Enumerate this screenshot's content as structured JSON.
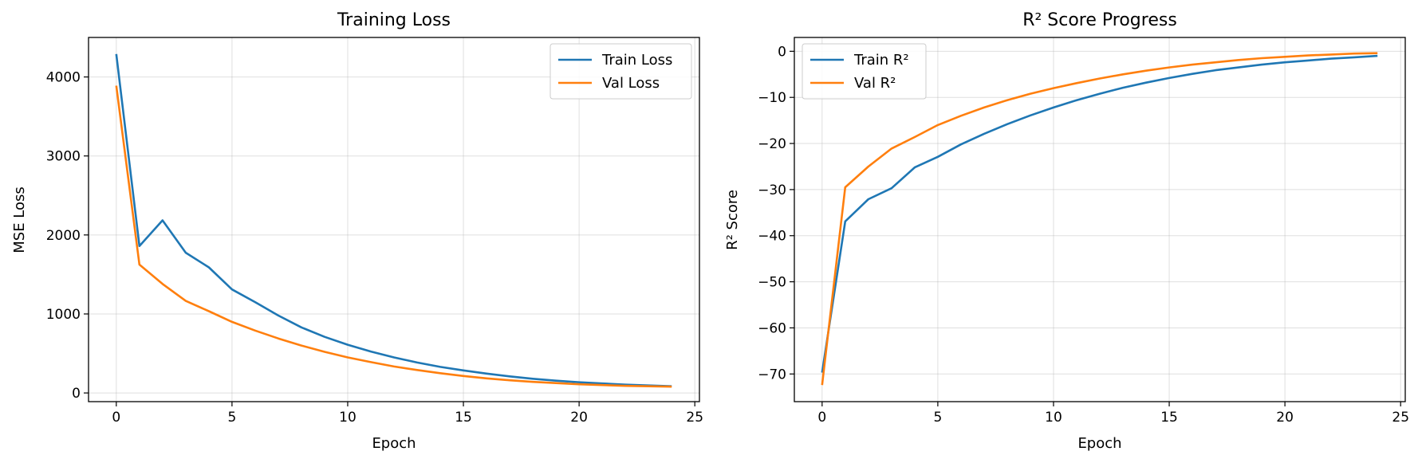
{
  "chart_data": [
    {
      "type": "line",
      "title": "Training Loss",
      "xlabel": "Epoch",
      "ylabel": "MSE Loss",
      "xlim": [
        -1.2,
        25.2
      ],
      "ylim": [
        -110,
        4500
      ],
      "xticks": [
        0,
        5,
        10,
        15,
        20,
        25
      ],
      "yticks": [
        0,
        1000,
        2000,
        3000,
        4000
      ],
      "xtick_labels": [
        "0",
        "5",
        "10",
        "15",
        "20",
        "25"
      ],
      "ytick_labels": [
        "0",
        "1000",
        "2000",
        "3000",
        "4000"
      ],
      "grid": true,
      "legend_position": "upper right",
      "x": [
        0,
        1,
        2,
        3,
        4,
        5,
        6,
        7,
        8,
        9,
        10,
        11,
        12,
        13,
        14,
        15,
        16,
        17,
        18,
        19,
        20,
        21,
        22,
        23,
        24
      ],
      "series": [
        {
          "name": "Train Loss",
          "color": "#1f77b4",
          "values": [
            4290,
            1860,
            2185,
            1775,
            1590,
            1310,
            1150,
            980,
            830,
            710,
            610,
            525,
            450,
            385,
            330,
            285,
            245,
            210,
            180,
            155,
            135,
            120,
            105,
            95,
            85
          ]
        },
        {
          "name": "Val Loss",
          "color": "#ff7f0e",
          "values": [
            3890,
            1625,
            1380,
            1165,
            1035,
            900,
            790,
            690,
            600,
            520,
            450,
            390,
            335,
            290,
            250,
            215,
            185,
            160,
            140,
            125,
            110,
            100,
            90,
            85,
            80
          ]
        }
      ]
    },
    {
      "type": "line",
      "title": "R² Score Progress",
      "xlabel": "Epoch",
      "ylabel": "R² Score",
      "xlim": [
        -1.2,
        25.2
      ],
      "ylim": [
        -76,
        3
      ],
      "xticks": [
        0,
        5,
        10,
        15,
        20,
        25
      ],
      "yticks": [
        0,
        -10,
        -20,
        -30,
        -40,
        -50,
        -60,
        -70
      ],
      "xtick_labels": [
        "0",
        "5",
        "10",
        "15",
        "20",
        "25"
      ],
      "ytick_labels": [
        "0",
        "−10",
        "−20",
        "−30",
        "−40",
        "−50",
        "−60",
        "−70"
      ],
      "grid": true,
      "legend_position": "upper left",
      "x": [
        0,
        1,
        2,
        3,
        4,
        5,
        6,
        7,
        8,
        9,
        10,
        11,
        12,
        13,
        14,
        15,
        16,
        17,
        18,
        19,
        20,
        21,
        22,
        23,
        24
      ],
      "series": [
        {
          "name": "Train R²",
          "color": "#1f77b4",
          "values": [
            -69.7,
            -36.9,
            -32.1,
            -29.7,
            -25.2,
            -22.9,
            -20.2,
            -17.9,
            -15.8,
            -13.9,
            -12.2,
            -10.6,
            -9.2,
            -7.9,
            -6.8,
            -5.8,
            -4.9,
            -4.1,
            -3.5,
            -2.9,
            -2.4,
            -2.0,
            -1.6,
            -1.3,
            -1.0
          ]
        },
        {
          "name": "Val R²",
          "color": "#ff7f0e",
          "values": [
            -72.4,
            -29.5,
            -25.0,
            -21.1,
            -18.6,
            -16.0,
            -14.0,
            -12.2,
            -10.6,
            -9.2,
            -8.0,
            -6.9,
            -5.9,
            -5.0,
            -4.2,
            -3.5,
            -2.9,
            -2.4,
            -1.9,
            -1.5,
            -1.2,
            -0.9,
            -0.7,
            -0.5,
            -0.4
          ]
        }
      ]
    }
  ]
}
